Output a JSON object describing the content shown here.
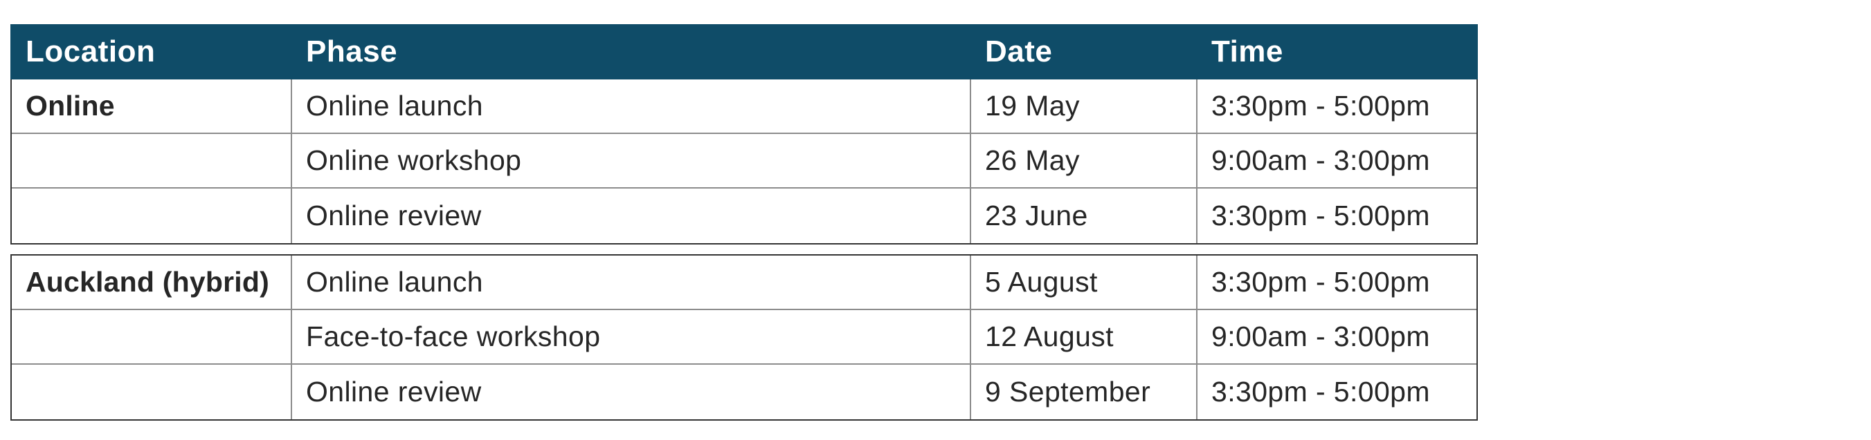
{
  "table": {
    "columns": [
      "Location",
      "Phase",
      "Date",
      "Time"
    ],
    "sections": [
      {
        "location": "Online",
        "rows": [
          {
            "phase": "Online launch",
            "date": "19 May",
            "time": "3:30pm - 5:00pm"
          },
          {
            "phase": "Online workshop",
            "date": "26 May",
            "time": "9:00am - 3:00pm"
          },
          {
            "phase": "Online review",
            "date": "23 June",
            "time": "3:30pm - 5:00pm"
          }
        ]
      },
      {
        "location": "Auckland (hybrid)",
        "rows": [
          {
            "phase": "Online launch",
            "date": "5 August",
            "time": "3:30pm - 5:00pm"
          },
          {
            "phase": "Face-to-face workshop",
            "date": "12 August",
            "time": "9:00am - 3:00pm"
          },
          {
            "phase": "Online review",
            "date": "9 September",
            "time": "3:30pm - 5:00pm"
          }
        ]
      }
    ],
    "colors": {
      "header_bg": "#0F4C68",
      "header_text": "#FFFFFF",
      "body_text": "#262626",
      "grid_line": "#8C8C8C",
      "outer_line": "#333333",
      "page_bg": "#FFFFFF"
    }
  }
}
